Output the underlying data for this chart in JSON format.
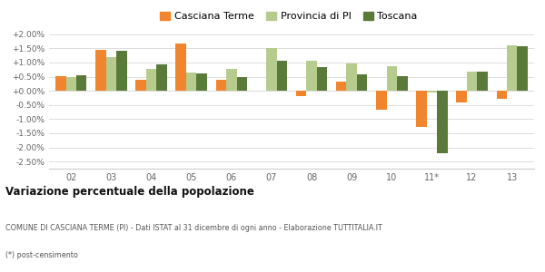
{
  "years": [
    "02",
    "03",
    "04",
    "05",
    "06",
    "07",
    "08",
    "09",
    "10",
    "11*",
    "12",
    "13"
  ],
  "casciana": [
    0.52,
    1.45,
    0.4,
    1.67,
    0.38,
    0.02,
    -0.18,
    0.33,
    -0.67,
    -1.27,
    -0.4,
    -0.28
  ],
  "provincia": [
    0.5,
    1.2,
    0.76,
    0.65,
    0.79,
    1.52,
    1.08,
    0.97,
    0.88,
    -0.05,
    0.67,
    1.6
  ],
  "toscana": [
    0.55,
    1.42,
    0.93,
    0.6,
    0.5,
    1.06,
    0.84,
    0.59,
    0.51,
    -2.2,
    0.67,
    1.57
  ],
  "color_casciana": "#f0852d",
  "color_provincia": "#b5cc8e",
  "color_toscana": "#5a7a3a",
  "bg_color": "#ffffff",
  "grid_color": "#dddddd",
  "title": "Variazione percentuale della popolazione",
  "subtitle": "COMUNE DI CASCIANA TERME (PI) - Dati ISTAT al 31 dicembre di ogni anno - Elaborazione TUTTITALIA.IT",
  "footnote": "(*) post-censimento",
  "ylim": [
    -2.75,
    2.25
  ],
  "yticks": [
    -2.5,
    -2.0,
    -1.5,
    -1.0,
    -0.5,
    0.0,
    0.5,
    1.0,
    1.5,
    2.0
  ],
  "legend_labels": [
    "Casciana Terme",
    "Provincia di PI",
    "Toscana"
  ]
}
